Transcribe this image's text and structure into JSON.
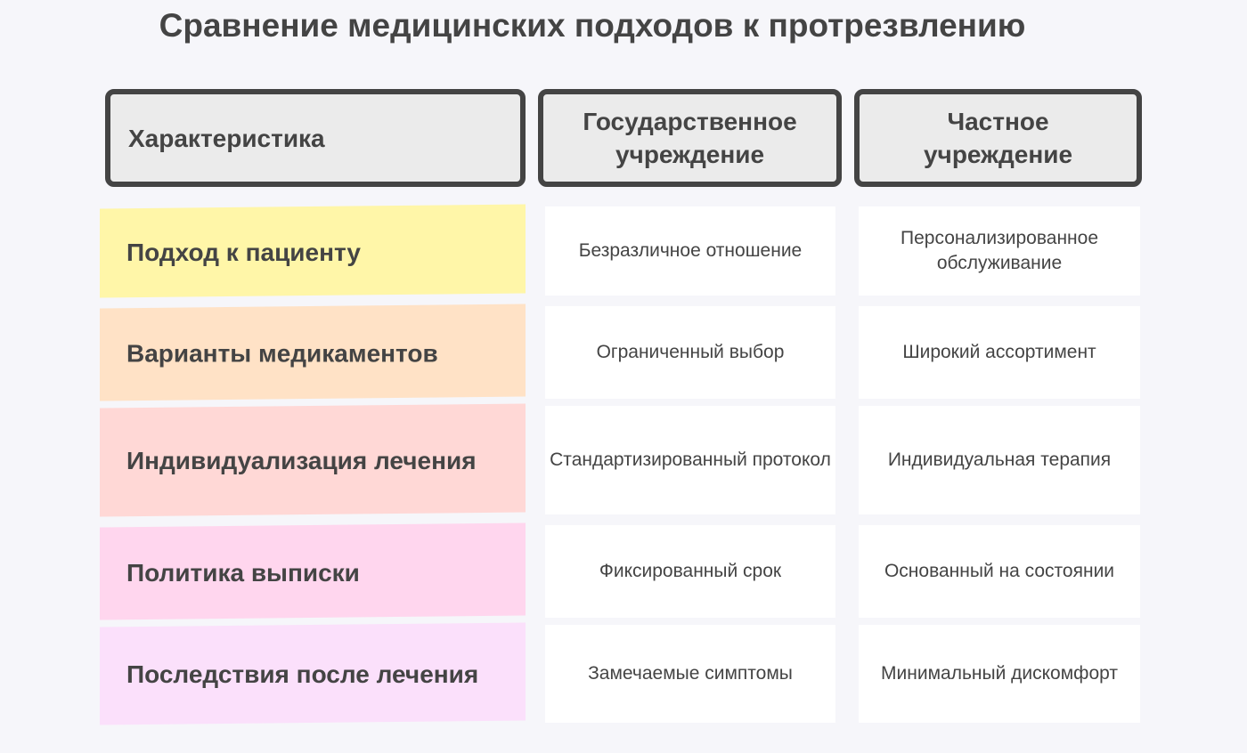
{
  "title": "Сравнение медицинских подходов к протрезвлению",
  "headers": [
    "Характеристика",
    "Государственное учреждение",
    "Частное учреждение"
  ],
  "rows": [
    {
      "label": "Подход к пациенту",
      "public": "Безразличное отношение",
      "private": "Персонализированное обслуживание",
      "color": "#fff6a8"
    },
    {
      "label": "Варианты медикаментов",
      "public": "Ограниченный выбор",
      "private": "Широкий ассортимент",
      "color": "#ffe2c6"
    },
    {
      "label": "Индивидуализация лечения",
      "public": "Стандартизированный протокол",
      "private": "Индивидуальная терапия",
      "color": "#ffd8d6"
    },
    {
      "label": "Политика выписки",
      "public": "Фиксированный срок",
      "private": "Основанный на состоянии",
      "color": "#ffd6ee"
    },
    {
      "label": "Последствия после лечения",
      "public": "Замечаемые симптомы",
      "private": "Минимальный дискомфорт",
      "color": "#fbe0fb"
    }
  ],
  "colors": {
    "header_fill": "#ebebeb",
    "border": "#444444",
    "background": "#f6f6fa"
  }
}
